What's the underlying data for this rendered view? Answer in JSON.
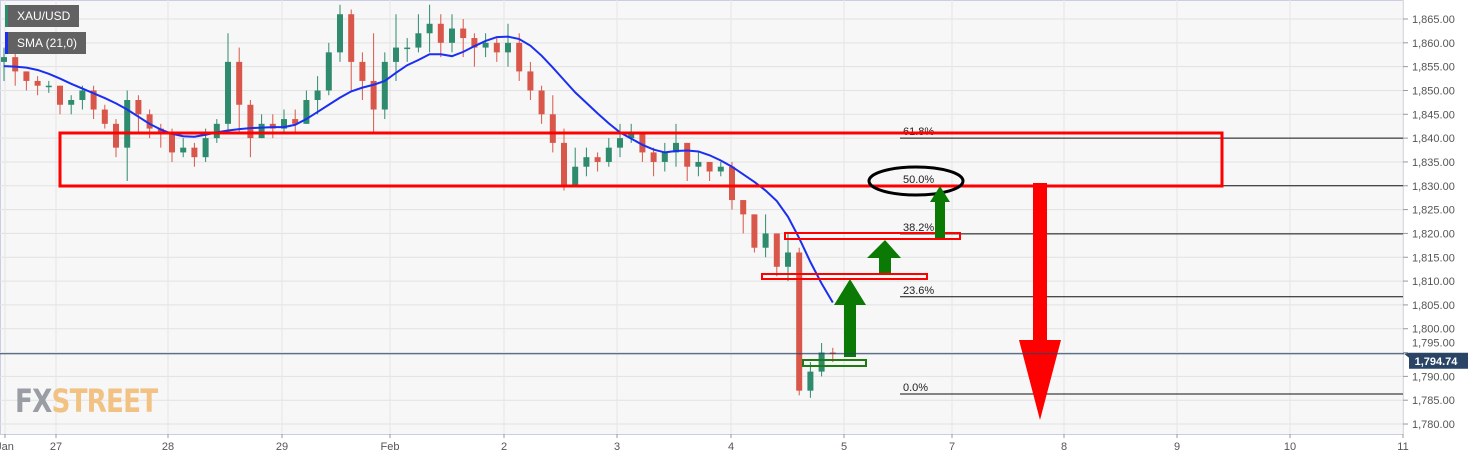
{
  "legend": {
    "symbol": "XAU/USD",
    "symbol_color": "#2e8b6e",
    "indicator": "SMA (21,0)",
    "indicator_color": "#1a2ff0"
  },
  "watermark": {
    "part1": "FX",
    "part2": "STREET"
  },
  "chart_data": {
    "type": "candlestick",
    "title": "",
    "ylim": [
      1778,
      1869
    ],
    "y_ticks": [
      "1,865.00",
      "1,860.00",
      "1,855.00",
      "1,850.00",
      "1,845.00",
      "1,840.00",
      "1,835.00",
      "1,830.00",
      "1,825.00",
      "1,820.00",
      "1,815.00",
      "1,810.00",
      "1,805.00",
      "1,800.00",
      "1,795.00",
      "1,790.00",
      "1,785.00",
      "1,780.00"
    ],
    "x_ticks": [
      "Jan",
      "27",
      "28",
      "29",
      "Feb",
      "2",
      "3",
      "4",
      "5",
      "7",
      "8",
      "9",
      "10",
      "11"
    ],
    "grid": true,
    "last_price": "1,794.74",
    "colors": {
      "up": "#2e8b6e",
      "down": "#d9574a",
      "sma": "#1a2ff0",
      "last_price": "#2a4466"
    },
    "candles_ohlc": [
      [
        1856,
        1859,
        1852,
        1857
      ],
      [
        1857,
        1858,
        1851,
        1854
      ],
      [
        1854,
        1854,
        1850,
        1852
      ],
      [
        1852,
        1853,
        1849,
        1851
      ],
      [
        1851,
        1852,
        1849.5,
        1851
      ],
      [
        1851,
        1851,
        1845,
        1847
      ],
      [
        1847,
        1849,
        1845,
        1848
      ],
      [
        1848,
        1851,
        1846,
        1850
      ],
      [
        1850,
        1851,
        1844,
        1846
      ],
      [
        1846,
        1847,
        1842,
        1843
      ],
      [
        1843,
        1844,
        1836,
        1838
      ],
      [
        1838,
        1850,
        1831,
        1848
      ],
      [
        1848,
        1849,
        1841,
        1845
      ],
      [
        1845,
        1846,
        1840,
        1842
      ],
      [
        1842,
        1843,
        1838,
        1841
      ],
      [
        1841,
        1842,
        1835,
        1837
      ],
      [
        1837,
        1840,
        1836,
        1838
      ],
      [
        1838,
        1839,
        1834,
        1836
      ],
      [
        1836,
        1842,
        1835,
        1840
      ],
      [
        1840,
        1844,
        1839,
        1843
      ],
      [
        1843,
        1862,
        1841,
        1856
      ],
      [
        1856,
        1859,
        1841,
        1847
      ],
      [
        1847,
        1848,
        1836,
        1840
      ],
      [
        1840,
        1845,
        1840,
        1843
      ],
      [
        1843,
        1845,
        1840,
        1842
      ],
      [
        1842,
        1846,
        1841,
        1844
      ],
      [
        1844,
        1846,
        1841,
        1843
      ],
      [
        1843,
        1850,
        1843,
        1848
      ],
      [
        1848,
        1853,
        1845,
        1850
      ],
      [
        1850,
        1860,
        1849,
        1858
      ],
      [
        1858,
        1868,
        1856,
        1866
      ],
      [
        1866,
        1867,
        1850,
        1856
      ],
      [
        1856,
        1858,
        1848,
        1852
      ],
      [
        1852,
        1862,
        1841,
        1846
      ],
      [
        1846,
        1858,
        1844,
        1856
      ],
      [
        1856,
        1866,
        1852,
        1859
      ],
      [
        1859,
        1861,
        1856,
        1859
      ],
      [
        1859,
        1866,
        1858,
        1862
      ],
      [
        1862,
        1868,
        1858,
        1864
      ],
      [
        1864,
        1866,
        1857,
        1860
      ],
      [
        1860,
        1866,
        1858,
        1863
      ],
      [
        1863,
        1865,
        1857,
        1861
      ],
      [
        1861,
        1862,
        1855,
        1859
      ],
      [
        1859,
        1862,
        1857,
        1860
      ],
      [
        1860,
        1861,
        1856,
        1858
      ],
      [
        1858,
        1864,
        1855,
        1860
      ],
      [
        1860,
        1862,
        1852,
        1854
      ],
      [
        1854,
        1856,
        1848,
        1850
      ],
      [
        1850,
        1851,
        1843,
        1845
      ],
      [
        1845,
        1849,
        1837,
        1839
      ],
      [
        1839,
        1842,
        1829,
        1830
      ],
      [
        1830,
        1838,
        1830,
        1834
      ],
      [
        1834,
        1838,
        1832,
        1836
      ],
      [
        1836,
        1837,
        1833,
        1835
      ],
      [
        1835,
        1840,
        1834,
        1838
      ],
      [
        1838,
        1843,
        1836,
        1840
      ],
      [
        1840,
        1843,
        1839,
        1841
      ],
      [
        1841,
        1841,
        1835,
        1837
      ],
      [
        1837,
        1838,
        1832,
        1835
      ],
      [
        1835,
        1839,
        1833,
        1837
      ],
      [
        1837,
        1843,
        1834,
        1839
      ],
      [
        1839,
        1838,
        1831,
        1834
      ],
      [
        1834,
        1837,
        1832,
        1835
      ],
      [
        1835,
        1835,
        1831,
        1833
      ],
      [
        1833,
        1835,
        1832,
        1834
      ],
      [
        1834,
        1835,
        1825,
        1827
      ],
      [
        1827,
        1827,
        1820,
        1824
      ],
      [
        1824,
        1823,
        1816,
        1817
      ],
      [
        1817,
        1824,
        1815,
        1820
      ],
      [
        1820,
        1816,
        1811,
        1813
      ],
      [
        1813,
        1820,
        1810,
        1816
      ],
      [
        1816,
        1817,
        1786,
        1787
      ],
      [
        1787,
        1793,
        1785.5,
        1791
      ],
      [
        1791,
        1797,
        1790,
        1795
      ],
      [
        1795,
        1796,
        1793,
        1794.74
      ]
    ],
    "sma_21": [
      1855.1,
      1855,
      1854.8,
      1854.3,
      1853.5,
      1852.5,
      1851.4,
      1850.4,
      1849.4,
      1848.4,
      1847.3,
      1846,
      1844.5,
      1843,
      1841.8,
      1840.9,
      1840.4,
      1840.3,
      1840.7,
      1841.2,
      1841.6,
      1841.9,
      1842.1,
      1842.2,
      1842.3,
      1842.3,
      1842.8,
      1844,
      1845.5,
      1847,
      1848.5,
      1849.8,
      1850.6,
      1851.2,
      1852,
      1853.7,
      1855.3,
      1856.4,
      1857.6,
      1857.6,
      1857.2,
      1858.1,
      1859.3,
      1860.4,
      1861.2,
      1861.3,
      1860.8,
      1859.4,
      1857.3,
      1854.8,
      1852.2,
      1849.6,
      1847.4,
      1845.2,
      1843.1,
      1841.2,
      1839.9,
      1838.6,
      1837.6,
      1837,
      1837.3,
      1837.4,
      1837.2,
      1836.4,
      1835.3,
      1834,
      1832.4,
      1830.8,
      1829,
      1826.8,
      1823.5,
      1819,
      1814,
      1809.5,
      1805.5
    ],
    "fibonacci": [
      {
        "label": "61.8%",
        "price": 1840.0
      },
      {
        "label": "50.0%",
        "price": 1830.0
      },
      {
        "label": "38.2%",
        "price": 1819.9
      },
      {
        "label": "23.6%",
        "price": 1806.7
      },
      {
        "label": "0.0%",
        "price": 1786.3
      }
    ]
  }
}
